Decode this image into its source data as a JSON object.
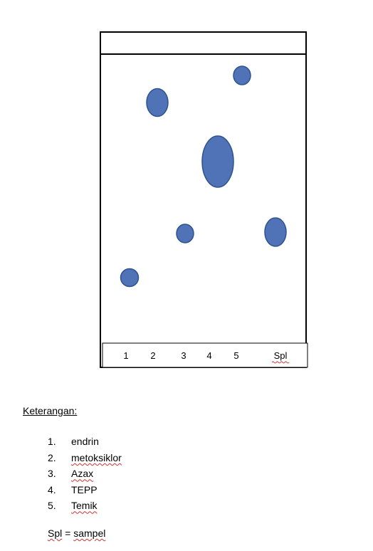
{
  "plate": {
    "spot_color": "#4f73b6",
    "spot_edge_color": "#2f528f",
    "lanes": [
      {
        "label": "1"
      },
      {
        "label": "2"
      },
      {
        "label": "3"
      },
      {
        "label": "4"
      },
      {
        "label": "5"
      },
      {
        "label": "Spl"
      }
    ]
  },
  "legend": {
    "title": "Keterangan:",
    "items": [
      {
        "number": "1.",
        "name": "endrin"
      },
      {
        "number": "2.",
        "name": "metoksiklor"
      },
      {
        "number": "3.",
        "name": "Azax"
      },
      {
        "number": "4.",
        "name": "TEPP"
      },
      {
        "number": "5.",
        "name": "Temik"
      }
    ],
    "footnote_abbr": "Spl",
    "footnote_sep": " = ",
    "footnote_meaning": "sampel"
  }
}
